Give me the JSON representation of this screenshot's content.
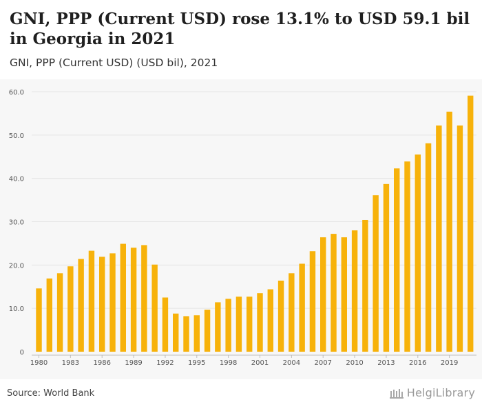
{
  "header": {
    "title": "GNI, PPP (Current USD) rose 13.1% to USD 59.1 bil in Georgia in 2021",
    "subtitle": "GNI, PPP (Current USD) (USD bil), 2021"
  },
  "footer": {
    "source": "Source: World Bank",
    "logo_text": "HelgiLibrary"
  },
  "colors": {
    "bar": "#f7b20a",
    "grid": "#e4e4e4",
    "axis_text": "#555555",
    "plot_background": "#f7f7f7"
  },
  "chart_data": {
    "type": "bar",
    "title": "GNI, PPP (Current USD) rose 13.1% to USD 59.1 bil in Georgia in 2021",
    "subtitle": "GNI, PPP (Current USD) (USD bil), 2021",
    "xlabel": "",
    "ylabel": "",
    "ylim": [
      0,
      60
    ],
    "grid": true,
    "legend": "none",
    "y_ticks": [
      "0",
      "10.0",
      "20.0",
      "30.0",
      "40.0",
      "50.0",
      "60.0"
    ],
    "x_tick_labels": [
      "1980",
      "1983",
      "1986",
      "1989",
      "1992",
      "1995",
      "1998",
      "2001",
      "2004",
      "2007",
      "2010",
      "2013",
      "2016",
      "2019"
    ],
    "categories": [
      "1980",
      "1981",
      "1982",
      "1983",
      "1984",
      "1985",
      "1986",
      "1987",
      "1988",
      "1989",
      "1990",
      "1991",
      "1992",
      "1993",
      "1994",
      "1995",
      "1996",
      "1997",
      "1998",
      "1999",
      "2000",
      "2001",
      "2002",
      "2003",
      "2004",
      "2005",
      "2006",
      "2007",
      "2008",
      "2009",
      "2010",
      "2011",
      "2012",
      "2013",
      "2014",
      "2015",
      "2016",
      "2017",
      "2018",
      "2019",
      "2020",
      "2021"
    ],
    "values": [
      14.6,
      16.9,
      18.1,
      19.7,
      21.4,
      23.3,
      21.9,
      22.7,
      24.9,
      24.0,
      24.6,
      20.1,
      12.5,
      8.8,
      8.2,
      8.4,
      9.7,
      11.4,
      12.2,
      12.7,
      12.7,
      13.5,
      14.4,
      16.4,
      18.1,
      20.3,
      23.2,
      26.4,
      27.2,
      26.4,
      28.0,
      30.4,
      36.1,
      38.7,
      42.3,
      43.9,
      45.5,
      48.1,
      52.2,
      55.4,
      52.2,
      59.1
    ]
  }
}
